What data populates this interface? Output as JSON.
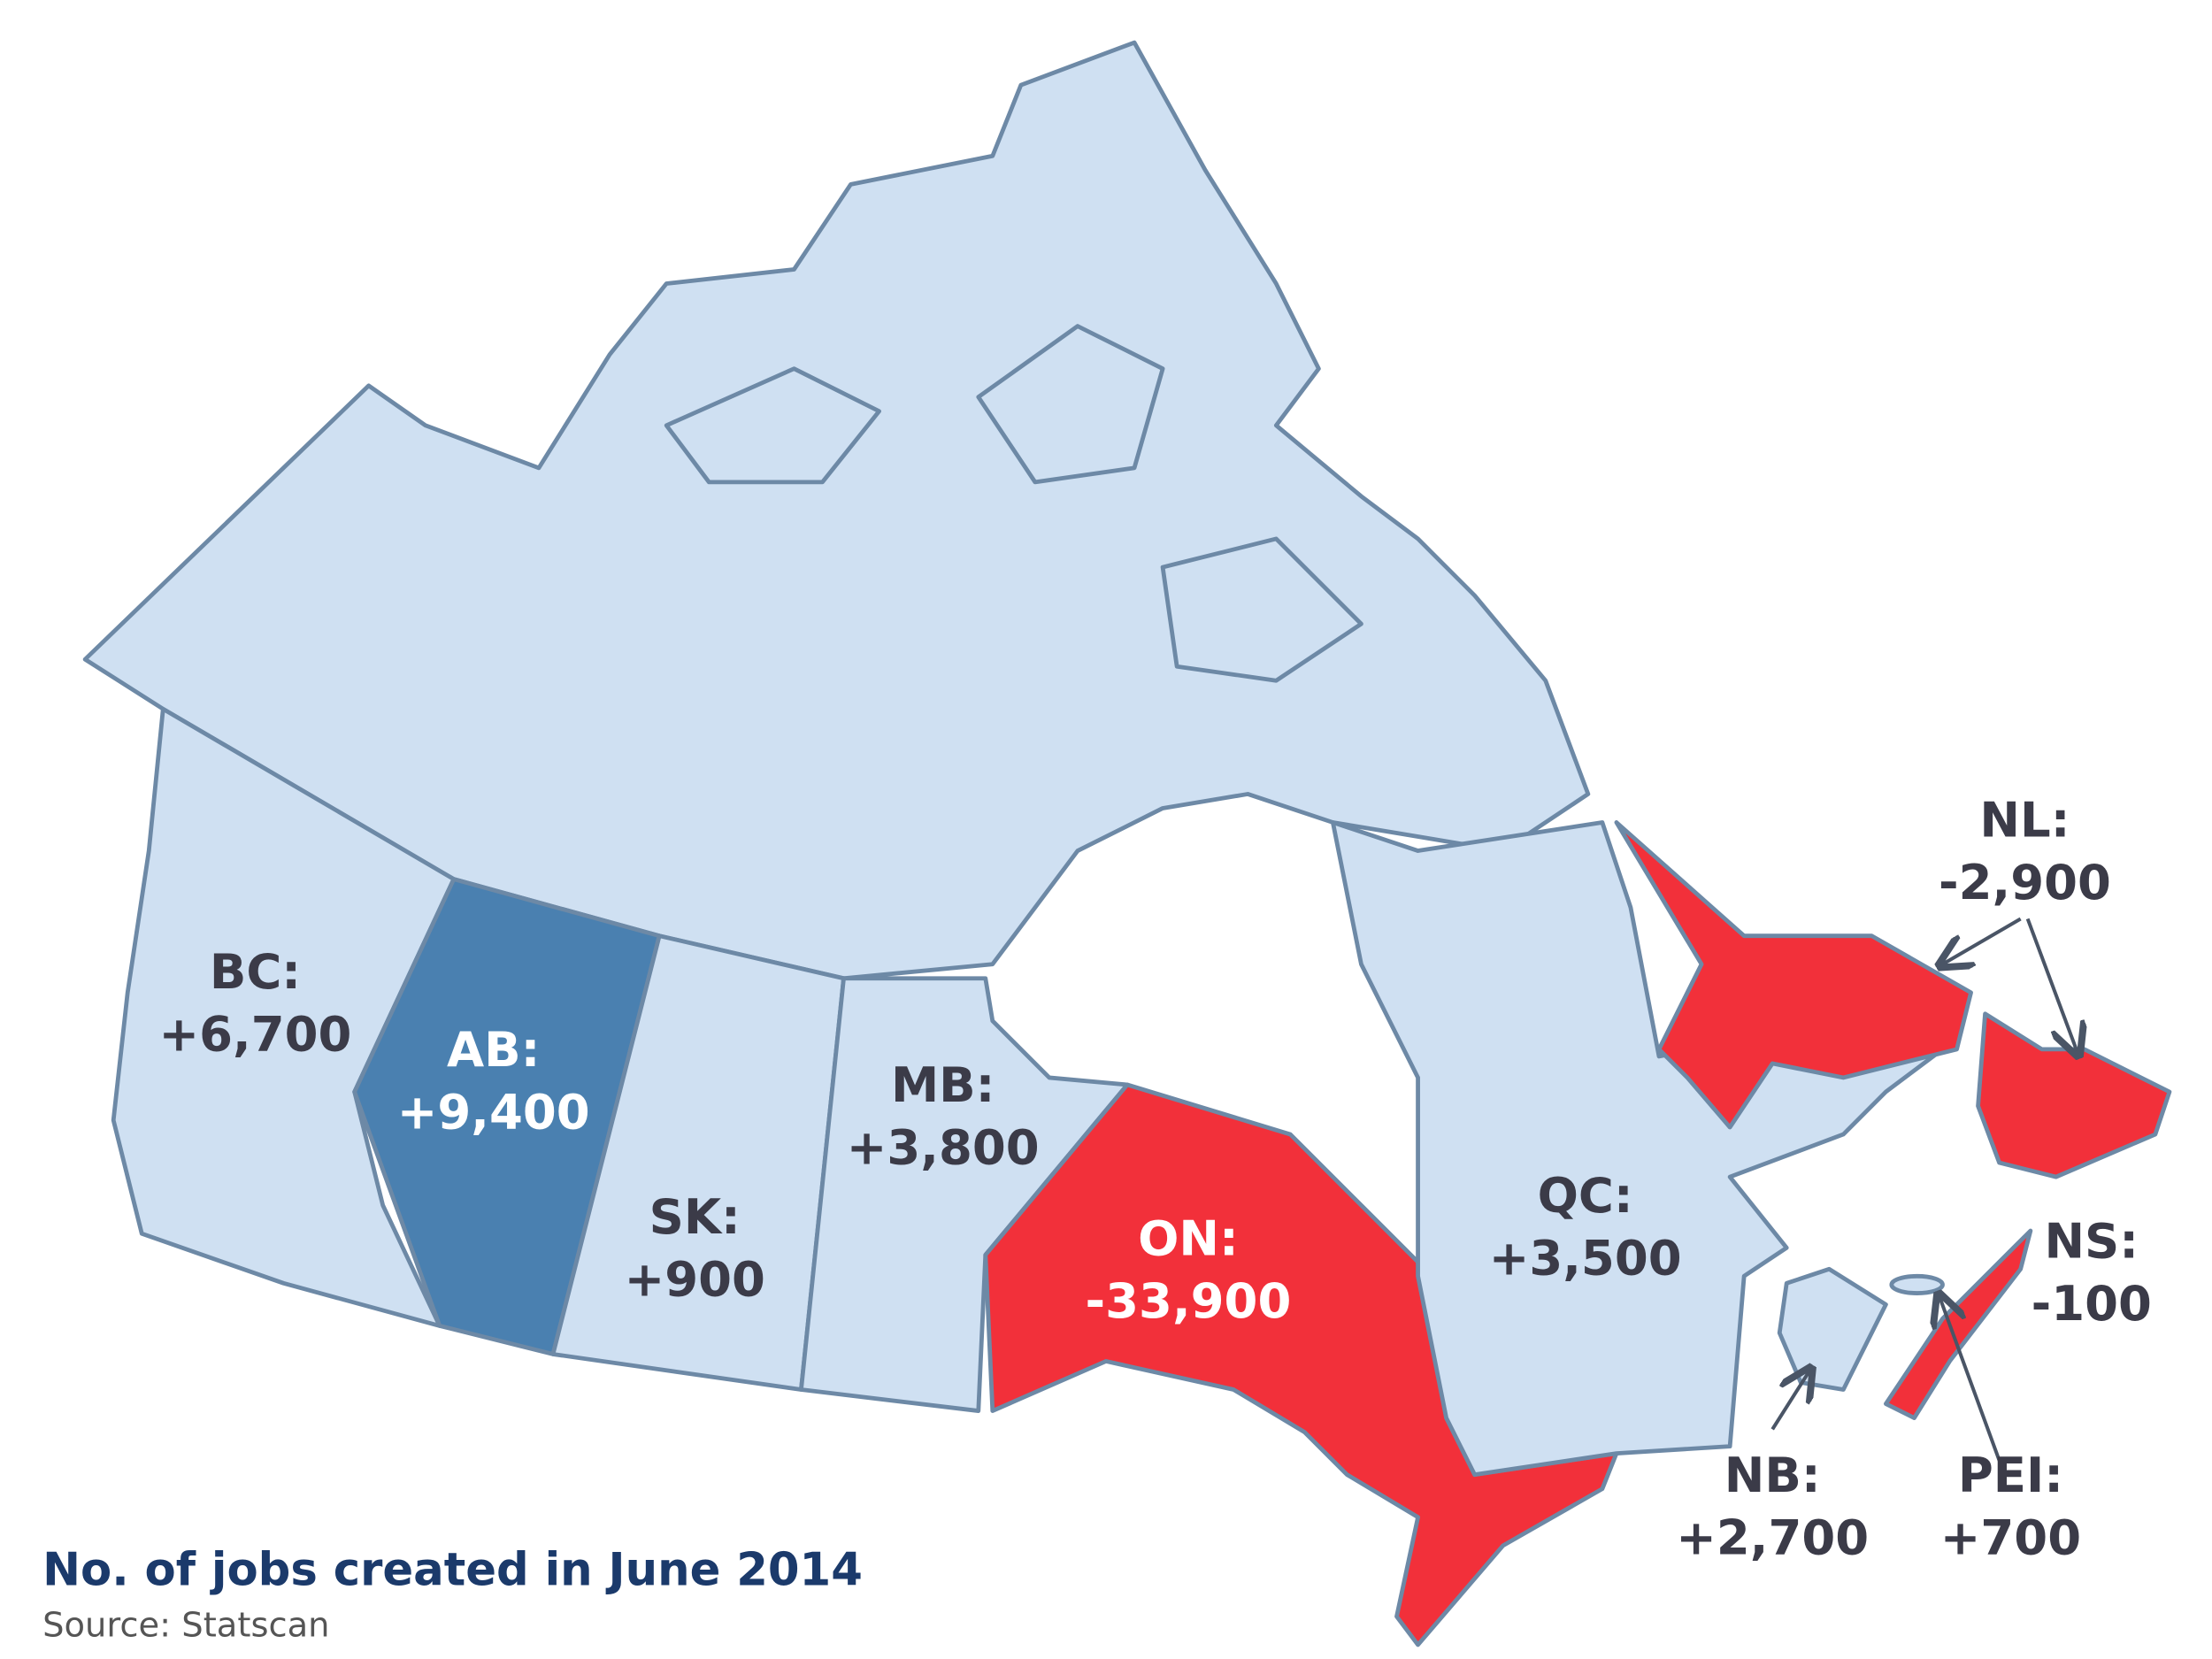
{
  "title": "No. of jobs created in June 2014",
  "source": "Source: Statscan",
  "provinces": [
    {
      "code": "BC:",
      "change": "+6,700"
    },
    {
      "code": "AB:",
      "change": "+9,400"
    },
    {
      "code": "SK:",
      "change": "+900"
    },
    {
      "code": "MB:",
      "change": "+3,800"
    },
    {
      "code": "ON:",
      "change": "-33,900"
    },
    {
      "code": "QC:",
      "change": "+3,500"
    },
    {
      "code": "NL:",
      "change": "-2,900"
    },
    {
      "code": "NS:",
      "change": "-100"
    },
    {
      "code": "NB:",
      "change": "+2,700"
    },
    {
      "code": "PEI:",
      "change": "+700"
    }
  ]
}
